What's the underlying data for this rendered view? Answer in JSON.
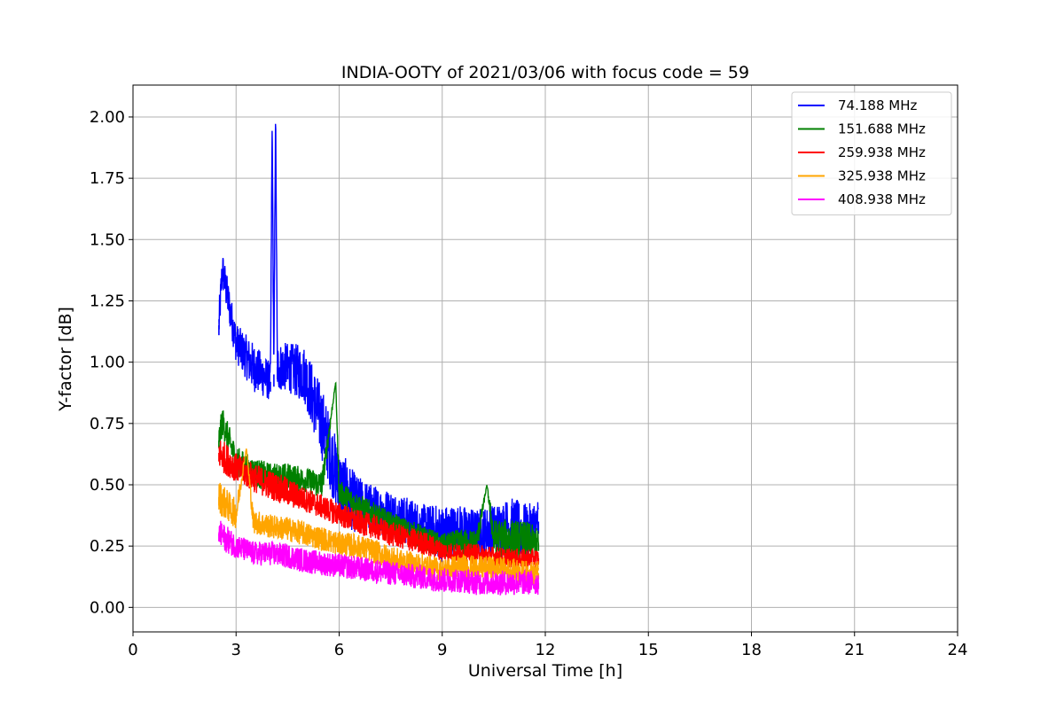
{
  "chart_data": {
    "type": "line",
    "title": "INDIA-OOTY of 2021/03/06 with focus code = 59",
    "xlabel": "Universal Time [h]",
    "ylabel": "Y-factor [dB]",
    "xlim": [
      0,
      24
    ],
    "ylim": [
      -0.1,
      2.13
    ],
    "xticks": [
      0,
      3,
      6,
      9,
      12,
      15,
      18,
      21,
      24
    ],
    "xtick_labels": [
      "0",
      "3",
      "6",
      "9",
      "12",
      "15",
      "18",
      "21",
      "24"
    ],
    "yticks": [
      0,
      0.25,
      0.5,
      0.75,
      1.0,
      1.25,
      1.5,
      1.75,
      2.0
    ],
    "ytick_labels": [
      "0.00",
      "0.25",
      "0.50",
      "0.75",
      "1.00",
      "1.25",
      "1.50",
      "1.75",
      "2.00"
    ],
    "grid": true,
    "legend_position": "top-right",
    "series": [
      {
        "name": " 74.188 MHz",
        "color": "#0000ff",
        "x": [
          2.5,
          2.6,
          3.0,
          3.5,
          4.0,
          4.05,
          4.1,
          4.15,
          4.2,
          4.5,
          5.0,
          5.5,
          6.0,
          6.5,
          7.0,
          7.5,
          8.0,
          8.5,
          9.0,
          9.5,
          10.0,
          10.5,
          11.0,
          11.5,
          11.8
        ],
        "y": [
          1.15,
          1.38,
          1.08,
          0.98,
          0.92,
          1.99,
          0.95,
          2.03,
          0.98,
          0.98,
          0.95,
          0.75,
          0.5,
          0.42,
          0.4,
          0.38,
          0.35,
          0.33,
          0.3,
          0.32,
          0.3,
          0.32,
          0.33,
          0.3,
          0.35
        ],
        "spread": [
          0.08,
          0.08,
          0.08,
          0.1,
          0.08,
          0.0,
          0.1,
          0.0,
          0.1,
          0.1,
          0.12,
          0.15,
          0.15,
          0.12,
          0.1,
          0.1,
          0.1,
          0.09,
          0.12,
          0.1,
          0.1,
          0.1,
          0.12,
          0.12,
          0.1
        ]
      },
      {
        "name": "151.688 MHz",
        "color": "#008000",
        "x": [
          2.5,
          2.6,
          3.0,
          3.5,
          4.0,
          4.5,
          5.0,
          5.5,
          5.9,
          6.0,
          6.5,
          7.0,
          7.5,
          8.0,
          8.5,
          9.0,
          9.5,
          10.0,
          10.3,
          10.5,
          11.0,
          11.5,
          11.8
        ],
        "y": [
          0.68,
          0.76,
          0.6,
          0.55,
          0.53,
          0.53,
          0.52,
          0.5,
          0.92,
          0.47,
          0.42,
          0.38,
          0.34,
          0.31,
          0.28,
          0.25,
          0.26,
          0.26,
          0.5,
          0.28,
          0.28,
          0.27,
          0.26
        ],
        "spread": [
          0.06,
          0.06,
          0.06,
          0.06,
          0.06,
          0.06,
          0.05,
          0.06,
          0.0,
          0.05,
          0.05,
          0.05,
          0.05,
          0.05,
          0.05,
          0.05,
          0.06,
          0.06,
          0.0,
          0.08,
          0.08,
          0.08,
          0.06
        ]
      },
      {
        "name": "259.938 MHz",
        "color": "#ff0000",
        "x": [
          2.5,
          3.0,
          3.5,
          4.0,
          4.5,
          5.0,
          5.5,
          6.0,
          6.5,
          7.0,
          7.5,
          8.0,
          8.5,
          9.0,
          9.5,
          10.0,
          10.5,
          11.0,
          11.5,
          11.8
        ],
        "y": [
          0.63,
          0.57,
          0.53,
          0.5,
          0.47,
          0.44,
          0.41,
          0.38,
          0.35,
          0.33,
          0.3,
          0.28,
          0.26,
          0.23,
          0.22,
          0.22,
          0.21,
          0.2,
          0.2,
          0.2
        ],
        "spread": [
          0.07,
          0.06,
          0.06,
          0.06,
          0.06,
          0.05,
          0.05,
          0.05,
          0.05,
          0.05,
          0.05,
          0.05,
          0.05,
          0.04,
          0.04,
          0.04,
          0.04,
          0.04,
          0.04,
          0.04
        ]
      },
      {
        "name": "325.938 MHz",
        "color": "#ffa500",
        "x": [
          2.5,
          3.0,
          3.3,
          3.5,
          4.0,
          4.5,
          5.0,
          5.5,
          6.0,
          6.5,
          7.0,
          7.5,
          8.0,
          8.5,
          9.0,
          9.5,
          10.0,
          10.5,
          11.0,
          11.5,
          11.8
        ],
        "y": [
          0.45,
          0.38,
          0.65,
          0.35,
          0.33,
          0.32,
          0.3,
          0.28,
          0.26,
          0.25,
          0.23,
          0.2,
          0.18,
          0.17,
          0.15,
          0.17,
          0.16,
          0.16,
          0.15,
          0.14,
          0.14
        ],
        "spread": [
          0.07,
          0.06,
          0.0,
          0.05,
          0.05,
          0.05,
          0.05,
          0.05,
          0.05,
          0.05,
          0.05,
          0.05,
          0.05,
          0.05,
          0.05,
          0.05,
          0.05,
          0.05,
          0.05,
          0.05,
          0.05
        ]
      },
      {
        "name": "408.938 MHz",
        "color": "#ff00ff",
        "x": [
          2.5,
          3.0,
          3.5,
          4.0,
          4.5,
          5.0,
          5.5,
          6.0,
          6.5,
          7.0,
          7.5,
          8.0,
          8.5,
          9.0,
          9.5,
          10.0,
          10.5,
          11.0,
          11.5,
          11.8
        ],
        "y": [
          0.3,
          0.25,
          0.22,
          0.22,
          0.21,
          0.19,
          0.18,
          0.17,
          0.16,
          0.15,
          0.14,
          0.13,
          0.12,
          0.11,
          0.11,
          0.1,
          0.1,
          0.1,
          0.1,
          0.1
        ],
        "spread": [
          0.06,
          0.05,
          0.05,
          0.05,
          0.05,
          0.05,
          0.05,
          0.05,
          0.05,
          0.05,
          0.05,
          0.05,
          0.05,
          0.05,
          0.05,
          0.05,
          0.05,
          0.05,
          0.05,
          0.05
        ]
      }
    ]
  }
}
